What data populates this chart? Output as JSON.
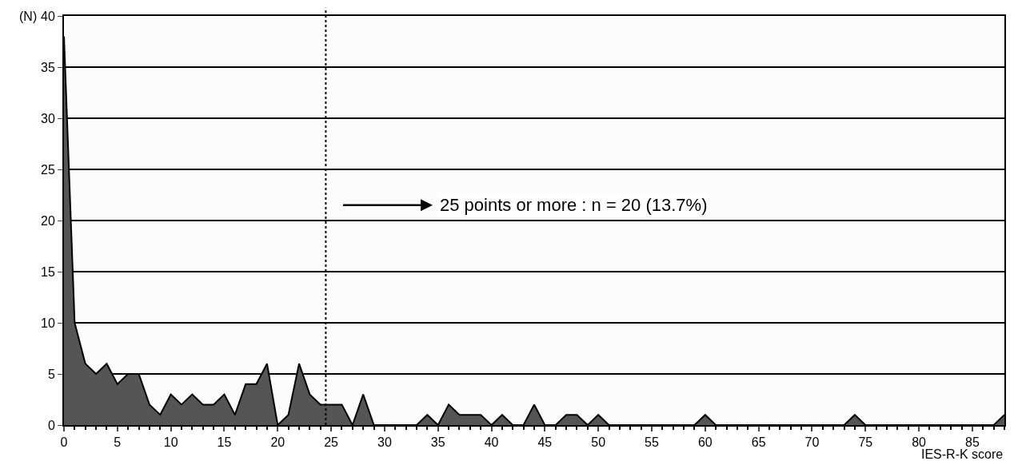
{
  "chart_data": {
    "type": "area",
    "xlabel": "IES-R-K score",
    "ylabel": "(N)",
    "x": [
      0,
      1,
      2,
      3,
      4,
      5,
      6,
      7,
      8,
      9,
      10,
      11,
      12,
      13,
      14,
      15,
      16,
      17,
      18,
      19,
      20,
      21,
      22,
      23,
      24,
      25,
      26,
      27,
      28,
      29,
      30,
      31,
      32,
      33,
      34,
      35,
      36,
      37,
      38,
      39,
      40,
      41,
      42,
      43,
      44,
      45,
      46,
      47,
      48,
      49,
      50,
      51,
      52,
      53,
      54,
      55,
      56,
      57,
      58,
      59,
      60,
      61,
      62,
      63,
      64,
      65,
      66,
      67,
      68,
      69,
      70,
      71,
      72,
      73,
      74,
      75,
      76,
      77,
      78,
      79,
      80,
      81,
      82,
      83,
      84,
      85,
      86,
      87,
      88
    ],
    "series": [
      {
        "color": "#555555",
        "values": [
          38,
          10,
          6,
          5,
          6,
          4,
          5,
          5,
          2,
          1,
          3,
          2,
          3,
          2,
          2,
          3,
          1,
          4,
          4,
          6,
          0,
          1,
          6,
          3,
          2,
          2,
          2,
          0,
          3,
          0,
          0,
          0,
          0,
          0,
          1,
          0,
          2,
          1,
          1,
          1,
          0,
          1,
          0,
          0,
          2,
          0,
          0,
          1,
          1,
          0,
          1,
          0,
          0,
          0,
          0,
          0,
          0,
          0,
          0,
          0,
          1,
          0,
          0,
          0,
          0,
          0,
          0,
          0,
          0,
          0,
          0,
          0,
          0,
          0,
          1,
          0,
          0,
          0,
          0,
          0,
          0,
          0,
          0,
          0,
          0,
          0,
          0,
          0,
          1
        ]
      }
    ],
    "xlim": [
      0,
      88
    ],
    "xticks": [
      0,
      5,
      10,
      15,
      20,
      25,
      30,
      35,
      40,
      45,
      50,
      55,
      60,
      65,
      70,
      75,
      80,
      85
    ],
    "ylim": [
      0,
      40
    ],
    "yticks": [
      0,
      5,
      10,
      15,
      20,
      25,
      30,
      35,
      40
    ],
    "grid": "y",
    "ref_lines": [
      {
        "axis": "x",
        "value": 24.5,
        "line_style": "dotted",
        "color": "#000000"
      }
    ],
    "annotations": [
      "25 points or more : n = 20 (13.7%)"
    ]
  }
}
